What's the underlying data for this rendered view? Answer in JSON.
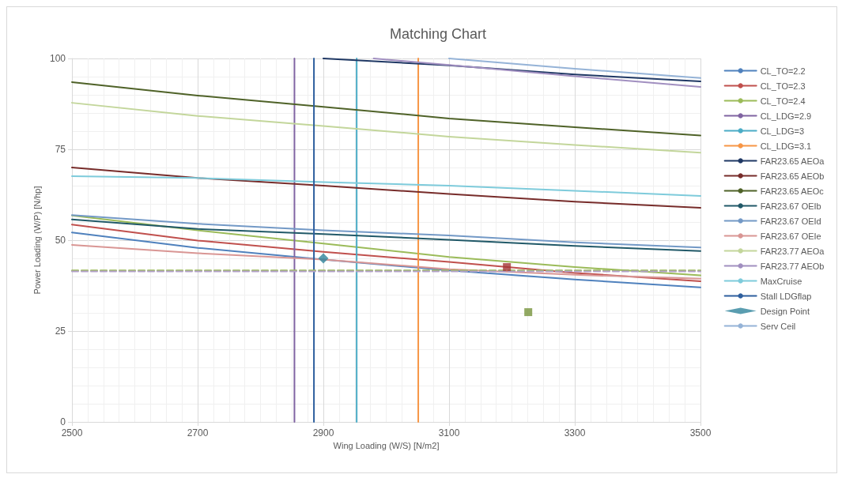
{
  "chart_data": {
    "type": "line",
    "title": "Matching Chart",
    "xlabel": "Wing Loading (W/S) [N/m2]",
    "ylabel": "Power Loading (W/P) [N/hp]",
    "x": [
      2500,
      2700,
      2900,
      3100,
      3300,
      3500
    ],
    "xlim": [
      2500,
      3500
    ],
    "xticks": [
      2500,
      2700,
      2900,
      3100,
      3300,
      3500
    ],
    "ylim": [
      0,
      100
    ],
    "yticks": [
      0,
      25,
      50,
      75,
      100
    ],
    "grid": true,
    "legend": "right",
    "marker": "none",
    "line_style": "solid",
    "series": [
      {
        "name": "CL_TO=2.2",
        "color": "#4f81bd",
        "values": [
          52.1,
          47.9,
          44.7,
          41.7,
          39.2,
          37.0
        ]
      },
      {
        "name": "CL_TO=2.3",
        "color": "#c0504d",
        "values": [
          54.3,
          49.9,
          46.8,
          44.0,
          41.0,
          38.7
        ]
      },
      {
        "name": "CL_TO=2.4",
        "color": "#9bbb59",
        "values": [
          56.8,
          52.7,
          49.1,
          45.4,
          42.6,
          40.3
        ]
      },
      {
        "name": "CL_LDG=2.9",
        "color": "#8064a2",
        "x": [
          2854,
          2854
        ],
        "values": [
          0,
          100
        ]
      },
      {
        "name": "CL_LDG=3",
        "color": "#4bacc6",
        "x": [
          2953,
          2953
        ],
        "values": [
          0,
          100
        ]
      },
      {
        "name": "CL_LDG=3.1",
        "color": "#f79646",
        "x": [
          3051,
          3051
        ],
        "values": [
          0,
          100
        ]
      },
      {
        "name": "FAR23.65 AEOa",
        "color": "#1f3864",
        "x": [
          2900,
          3100,
          3300,
          3500
        ],
        "values": [
          100,
          98.1,
          95.6,
          93.7
        ]
      },
      {
        "name": "FAR23.65 AEOb",
        "color": "#772c2a",
        "values": [
          70.0,
          67.1,
          65.0,
          62.7,
          60.6,
          58.9
        ]
      },
      {
        "name": "FAR23.65 AEOc",
        "color": "#4f6228",
        "values": [
          93.5,
          89.8,
          86.7,
          83.5,
          81.1,
          78.8
        ]
      },
      {
        "name": "FAR23.67 OEIb",
        "color": "#215968",
        "values": [
          55.7,
          53.1,
          51.7,
          50.1,
          48.4,
          47.0
        ]
      },
      {
        "name": "FAR23.67 OEId",
        "color": "#7399c6",
        "values": [
          56.9,
          54.5,
          52.7,
          51.3,
          49.4,
          48.0
        ]
      },
      {
        "name": "FAR23.67 OEIe",
        "color": "#d99694",
        "values": [
          48.7,
          46.4,
          44.7,
          42.0,
          40.5,
          39.4
        ]
      },
      {
        "name": "FAR23.77 AEOa",
        "color": "#c3d69b",
        "values": [
          87.8,
          84.2,
          81.4,
          78.5,
          76.2,
          74.1
        ]
      },
      {
        "name": "FAR23.77 AEOb",
        "color": "#a18fc0",
        "x": [
          2980,
          3100,
          3300,
          3500
        ],
        "values": [
          100,
          98.2,
          95.1,
          92.2
        ]
      },
      {
        "name": "MaxCruise",
        "color": "#7ecbdb",
        "values": [
          67.6,
          67.1,
          66.0,
          65.0,
          63.6,
          62.2
        ]
      },
      {
        "name": "Stall LDGflap",
        "color": "#2e5f9e",
        "x": [
          2885,
          2885
        ],
        "values": [
          0,
          100
        ]
      },
      {
        "type": "scatter",
        "color": "#a33634",
        "marker": "square",
        "x": [
          3192
        ],
        "values": [
          42.6
        ]
      },
      {
        "type": "scatter",
        "color": "#77933c",
        "marker": "square",
        "x": [
          3226
        ],
        "values": [
          30.2
        ]
      },
      {
        "name": "Design Point",
        "type": "scatter",
        "color": "#31859c",
        "marker": "diamond",
        "x": [
          2900
        ],
        "values": [
          45.0
        ]
      },
      {
        "name": "Serv Ceil",
        "color": "#95b3d7",
        "x": [
          3100,
          3300,
          3500
        ],
        "values": [
          100,
          97.2,
          94.6
        ]
      },
      {
        "color": "#9bbb59",
        "line_style": "dashed",
        "x": [
          2500,
          3500
        ],
        "values": [
          41.7,
          41.7
        ]
      },
      {
        "color": "#b2a1c7",
        "line_style": "dashed",
        "x": [
          2500,
          3500
        ],
        "values": [
          41.4,
          41.4
        ]
      }
    ]
  }
}
